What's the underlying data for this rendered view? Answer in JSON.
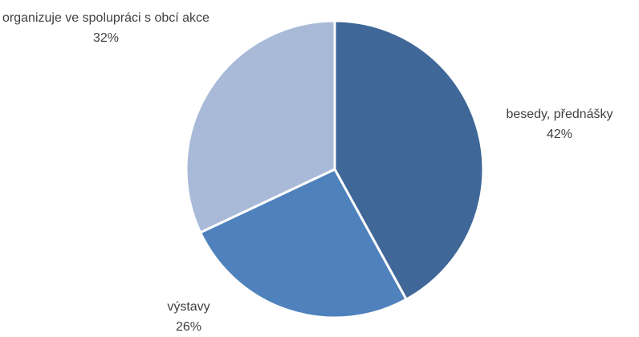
{
  "chart_data": {
    "type": "pie",
    "categories": [
      "besedy, přednášky",
      "výstavy",
      "organizuje ve spolupráci s obcí akce"
    ],
    "values": [
      42,
      26,
      32
    ],
    "value_labels": [
      "42%",
      "26%",
      "32%"
    ],
    "colors": [
      "#3f6797",
      "#4f81bd",
      "#a9bad8"
    ]
  }
}
